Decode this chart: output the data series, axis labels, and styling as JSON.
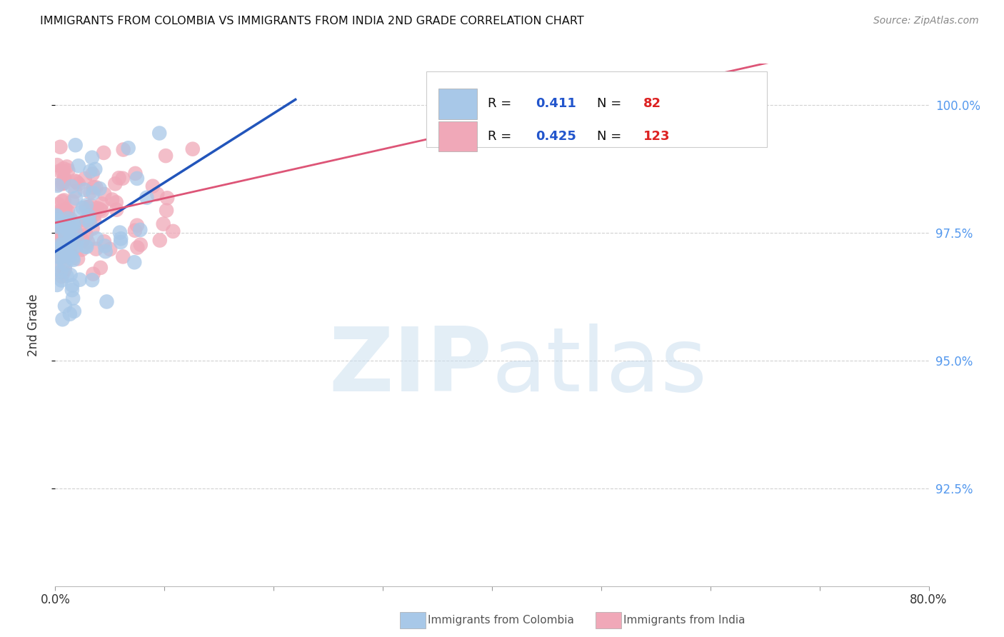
{
  "title": "IMMIGRANTS FROM COLOMBIA VS IMMIGRANTS FROM INDIA 2ND GRADE CORRELATION CHART",
  "source": "Source: ZipAtlas.com",
  "ylabel": "2nd Grade",
  "ytick_labels": [
    "92.5%",
    "95.0%",
    "97.5%",
    "100.0%"
  ],
  "ytick_values": [
    0.925,
    0.95,
    0.975,
    1.0
  ],
  "xlim": [
    0.0,
    0.8
  ],
  "ylim": [
    0.906,
    1.008
  ],
  "colombia_color": "#a8c8e8",
  "india_color": "#f0a8b8",
  "colombia_line_color": "#2255bb",
  "india_line_color": "#dd5577",
  "colombia_R": "0.411",
  "colombia_N": "82",
  "india_R": "0.425",
  "india_N": "123",
  "legend_number_color": "#2255cc",
  "legend_N_color": "#dd2222",
  "watermark_zip_color": "#cce0f0",
  "watermark_atlas_color": "#c0d8ec"
}
